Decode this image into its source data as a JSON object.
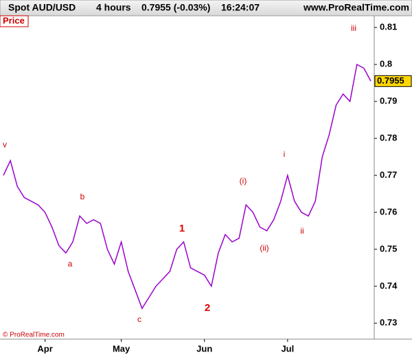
{
  "chart_data": {
    "type": "line",
    "title": "Spot AUD/USD",
    "interval": "4 hours",
    "quote": "0.7955 (-0.03%)",
    "time": "16:24:07",
    "source": "www.ProRealTime.com",
    "panel_label": "Price",
    "footer": "© ProRealTime.com",
    "last_price": 0.7955,
    "color": "#9900cc",
    "categories": [
      null,
      null,
      null,
      null,
      null,
      null,
      "Apr",
      null,
      null,
      null,
      null,
      null,
      null,
      null,
      null,
      null,
      null,
      "May",
      null,
      null,
      null,
      null,
      null,
      null,
      null,
      null,
      null,
      null,
      null,
      "Jun",
      null,
      null,
      null,
      null,
      null,
      null,
      null,
      null,
      null,
      null,
      null,
      "Jul",
      null,
      null,
      null,
      null,
      null,
      null,
      null,
      null,
      null,
      null,
      null,
      null
    ],
    "values": [
      0.77,
      0.774,
      0.767,
      0.764,
      0.763,
      0.762,
      0.76,
      0.756,
      0.751,
      0.749,
      0.752,
      0.759,
      0.757,
      0.758,
      0.757,
      0.75,
      0.746,
      0.752,
      0.744,
      0.739,
      0.734,
      0.737,
      0.74,
      0.742,
      0.744,
      0.75,
      0.752,
      0.745,
      0.744,
      0.743,
      0.74,
      0.749,
      0.754,
      0.752,
      0.753,
      0.762,
      0.76,
      0.756,
      0.755,
      0.758,
      0.763,
      0.77,
      0.763,
      0.76,
      0.759,
      0.763,
      0.775,
      0.781,
      0.789,
      0.792,
      0.79,
      0.8,
      0.799,
      0.7955
    ],
    "ylim": [
      0.7257,
      0.8128
    ],
    "yticks": [
      0.73,
      0.74,
      0.75,
      0.76,
      0.77,
      0.78,
      0.79,
      0.8,
      0.81
    ],
    "annotations": [
      "v",
      "a",
      "b",
      "c",
      "1",
      "2",
      "(i)",
      "(ii)",
      "i",
      "ii",
      "iii"
    ]
  }
}
